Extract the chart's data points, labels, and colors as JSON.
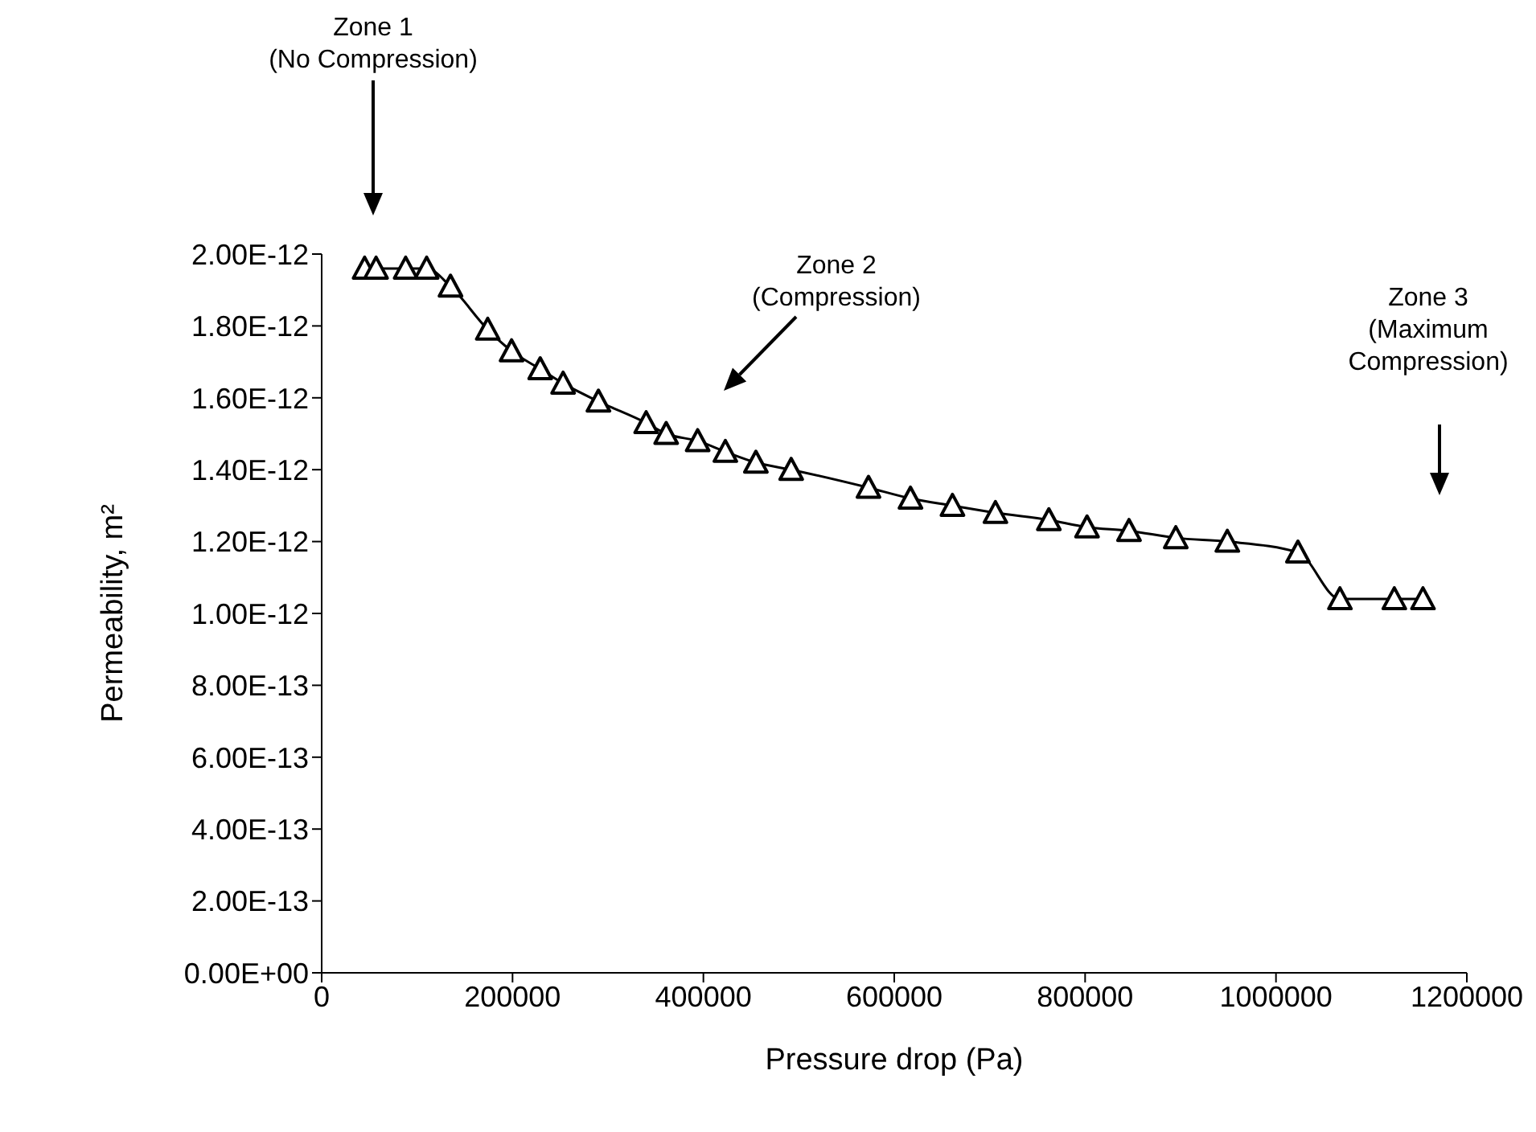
{
  "chart_data": {
    "type": "line",
    "xlabel": "Pressure drop (Pa)",
    "ylabel": "Permeability, m²",
    "x": [
      45000,
      57000,
      88000,
      110000,
      135000,
      174000,
      199000,
      229000,
      253000,
      290000,
      340000,
      361000,
      394000,
      423000,
      455000,
      492000,
      573000,
      617000,
      661000,
      706000,
      762000,
      802000,
      846000,
      895000,
      949000,
      1023000,
      1067000,
      1124000,
      1154000
    ],
    "series": [
      {
        "color": "#000000",
        "values": [
          1.96e-12,
          1.96e-12,
          1.96e-12,
          1.96e-12,
          1.91e-12,
          1.79e-12,
          1.73e-12,
          1.68e-12,
          1.64e-12,
          1.59e-12,
          1.53e-12,
          1.5e-12,
          1.48e-12,
          1.45e-12,
          1.42e-12,
          1.4e-12,
          1.35e-12,
          1.32e-12,
          1.3e-12,
          1.28e-12,
          1.26e-12,
          1.24e-12,
          1.23e-12,
          1.21e-12,
          1.2e-12,
          1.17e-12,
          1.04e-12,
          1.04e-12,
          1.04e-12
        ]
      }
    ],
    "xlim": [
      0,
      1200000
    ],
    "xticks": [
      0,
      200000,
      400000,
      600000,
      800000,
      1000000,
      1200000
    ],
    "ylim": [
      0,
      2e-12
    ],
    "yticks": [
      {
        "value": 0,
        "label": "0.00E+00"
      },
      {
        "value": 2e-13,
        "label": "2.00E-13"
      },
      {
        "value": 4e-13,
        "label": "4.00E-13"
      },
      {
        "value": 6e-13,
        "label": "6.00E-13"
      },
      {
        "value": 8e-13,
        "label": "8.00E-13"
      },
      {
        "value": 1e-12,
        "label": "1.00E-12"
      },
      {
        "value": 1.2e-12,
        "label": "1.20E-12"
      },
      {
        "value": 1.4e-12,
        "label": "1.40E-12"
      },
      {
        "value": 1.6e-12,
        "label": "1.60E-12"
      },
      {
        "value": 1.8e-12,
        "label": "1.80E-12"
      },
      {
        "value": 2e-12,
        "label": "2.00E-12"
      }
    ],
    "annotations": [
      "Zone 1\n(No Compression)",
      "Zone 2\n(Compression)",
      "Zone 3\n(Maximum\nCompression)"
    ],
    "marker": "triangle",
    "line_style": "solid",
    "grid": false,
    "legend": false
  }
}
